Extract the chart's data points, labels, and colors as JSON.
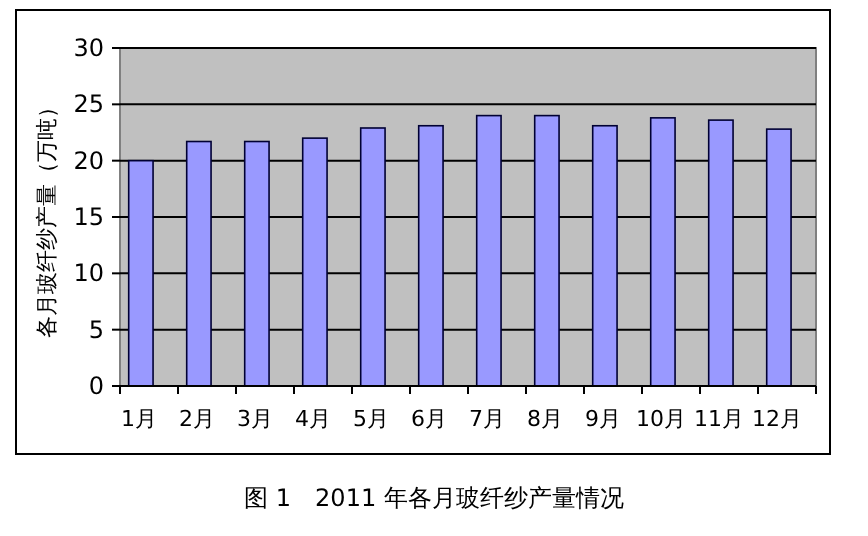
{
  "chart_data": {
    "type": "bar",
    "title": "图 1　2011 年各月玻纤纱产量情况",
    "ylabel": "各月玻纤纱产量（万吨）",
    "categories": [
      "1月",
      "2月",
      "3月",
      "4月",
      "5月",
      "6月",
      "7月",
      "8月",
      "9月",
      "10月",
      "11月",
      "12月"
    ],
    "values": [
      20,
      21.7,
      21.7,
      22,
      22.9,
      23.1,
      24,
      24,
      23.1,
      23.8,
      23.6,
      22.8
    ],
    "color": "#9999ff",
    "ylim": [
      0,
      30
    ],
    "yticks": [
      0,
      5,
      10,
      15,
      20,
      25,
      30
    ],
    "grid": "y"
  }
}
